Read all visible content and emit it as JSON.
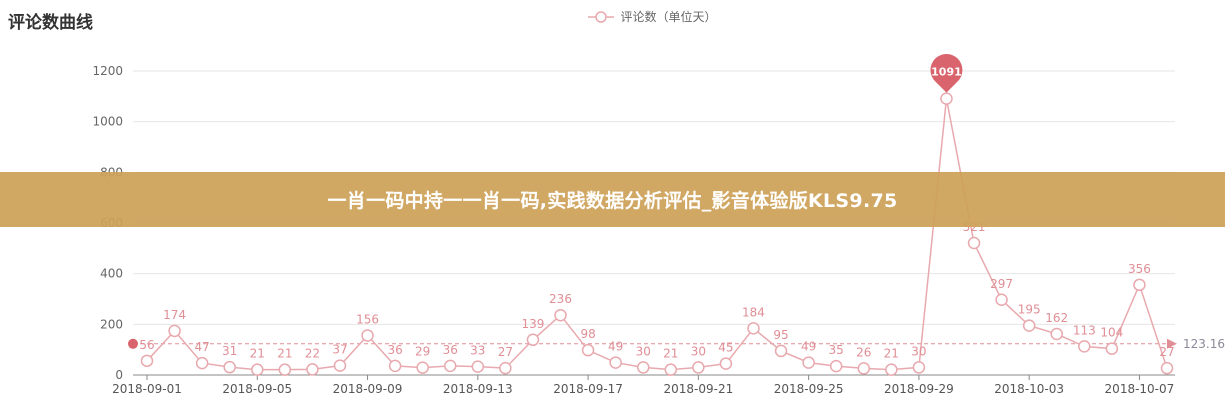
{
  "chart_data": {
    "type": "line",
    "title": "评论数曲线",
    "series": [
      {
        "name": "评论数（单位天）",
        "values": [
          56,
          174,
          47,
          31,
          21,
          21,
          22,
          37,
          156,
          36,
          29,
          36,
          33,
          27,
          139,
          236,
          98,
          49,
          30,
          21,
          30,
          45,
          184,
          95,
          49,
          35,
          26,
          21,
          30,
          1091,
          521,
          297,
          195,
          162,
          113,
          104,
          356,
          27
        ]
      }
    ],
    "x_tick_labels": [
      "2018-09-01",
      "2018-09-05",
      "2018-09-09",
      "2018-09-13",
      "2018-09-17",
      "2018-09-21",
      "2018-09-25",
      "2018-09-29",
      "2018-10-03",
      "2018-10-07"
    ],
    "x_tick_indices": [
      0,
      4,
      8,
      12,
      16,
      20,
      24,
      28,
      32,
      36
    ],
    "y_ticks": [
      0,
      200,
      400,
      600,
      800,
      1000,
      1200
    ],
    "ylim": [
      0,
      1200
    ],
    "average": 123.16,
    "average_label": "123.16",
    "max_value": 1091,
    "max_label": "1091",
    "grid": true,
    "legend_position": "top-center",
    "colors": {
      "line": "#e8a9ae",
      "point_fill": "#ffffff",
      "label": "#e08f96",
      "pin": "#d9646e",
      "grid": "#e6e6e6",
      "axis_text": "#666666"
    }
  },
  "banner": {
    "text": "一肖一码中持一一肖一码,实践数据分析评估_影音体验版KLS9.75"
  }
}
